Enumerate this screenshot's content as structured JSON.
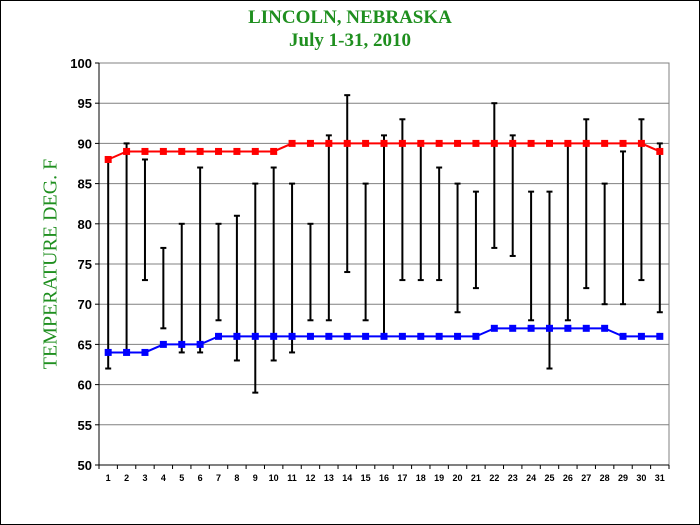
{
  "chart_data": {
    "type": "line",
    "title": "LINCOLN, NEBRASKA",
    "subtitle": "July 1-31, 2010",
    "xlabel": "",
    "ylabel": "TEMPERATURE DEG. F",
    "ylim": [
      50,
      100
    ],
    "yticks": [
      50,
      55,
      60,
      65,
      70,
      75,
      80,
      85,
      90,
      95,
      100
    ],
    "x": [
      1,
      2,
      3,
      4,
      5,
      6,
      7,
      8,
      9,
      10,
      11,
      12,
      13,
      14,
      15,
      16,
      17,
      18,
      19,
      20,
      21,
      22,
      23,
      24,
      25,
      26,
      27,
      28,
      29,
      30,
      31
    ],
    "grid": true,
    "legend": "none",
    "series": [
      {
        "type": "line",
        "color": "#ff0000",
        "marker": "square",
        "values": [
          88,
          89,
          89,
          89,
          89,
          89,
          89,
          89,
          89,
          89,
          90,
          90,
          90,
          90,
          90,
          90,
          90,
          90,
          90,
          90,
          90,
          90,
          90,
          90,
          90,
          90,
          90,
          90,
          90,
          90,
          89
        ]
      },
      {
        "type": "line",
        "color": "#0000ff",
        "marker": "square",
        "values": [
          64,
          64,
          64,
          65,
          65,
          65,
          66,
          66,
          66,
          66,
          66,
          66,
          66,
          66,
          66,
          66,
          66,
          66,
          66,
          66,
          66,
          67,
          67,
          67,
          67,
          67,
          67,
          67,
          66,
          66,
          66
        ]
      },
      {
        "type": "range",
        "color": "#000000",
        "high": [
          88,
          90,
          88,
          77,
          80,
          87,
          80,
          81,
          85,
          87,
          85,
          80,
          91,
          96,
          85,
          91,
          93,
          90,
          87,
          85,
          84,
          95,
          91,
          84,
          84,
          90,
          93,
          85,
          89,
          93,
          90
        ],
        "low": [
          62,
          64,
          73,
          67,
          64,
          64,
          68,
          63,
          59,
          63,
          64,
          68,
          68,
          74,
          68,
          66,
          73,
          73,
          73,
          69,
          72,
          77,
          76,
          68,
          62,
          68,
          72,
          70,
          70,
          73,
          69
        ]
      }
    ]
  }
}
